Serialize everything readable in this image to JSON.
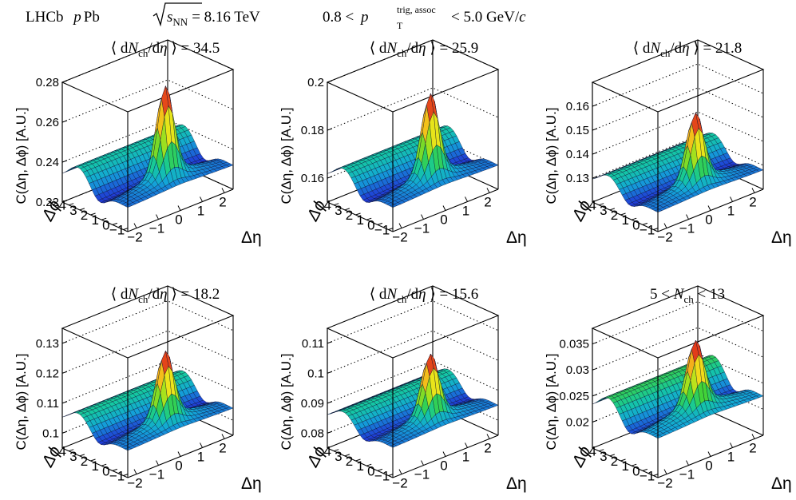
{
  "figure": {
    "experiment": "LHCb",
    "system_p": "p",
    "system_pb": "Pb",
    "energy_symbol": "s",
    "energy_sub": "NN",
    "energy_value": "= 8.16 TeV",
    "pt_low": "0.8 <",
    "pt_symbol": "p",
    "pt_sup": "trig, assoc",
    "pt_sub": "T",
    "pt_high": "< 5.0 GeV/",
    "pt_unit_c": "c"
  },
  "colors": {
    "palette": [
      "#2a0a8c",
      "#1f3fd6",
      "#13a6d8",
      "#14c9a0",
      "#3cd23a",
      "#a8e21c",
      "#f2e41a",
      "#f59a1a",
      "#e23a1a",
      "#c8102e"
    ],
    "mesh": "#0d1030",
    "axis": "#000000"
  },
  "chart_data": [
    {
      "type": "surface3d",
      "title_prefix": "⟨ d",
      "title_N": "N",
      "title_sub": "ch",
      "title_mid": "/d",
      "title_eta": "η",
      "title_suffix": " ⟩ = 34.5",
      "zlabel": "C(Δη, Δϕ) [A.U.]",
      "xlabel": "Δη",
      "ylabel": "Δϕ",
      "zlim": [
        0.22,
        0.28
      ],
      "zticks": [
        "0.22",
        "0.24",
        "0.26",
        "0.28"
      ],
      "xticks": [
        "−2",
        "−1",
        "0",
        "1",
        "2"
      ],
      "yticks": [
        "−1",
        "0",
        "1",
        "2",
        "3",
        "4"
      ],
      "baseline": 0.232,
      "ridge_amp": 0.009,
      "peak": 0.279
    },
    {
      "type": "surface3d",
      "title_prefix": "⟨ d",
      "title_N": "N",
      "title_sub": "ch",
      "title_mid": "/d",
      "title_eta": "η",
      "title_suffix": " ⟩ = 25.9",
      "zlabel": "C(Δη, Δϕ) [A.U.]",
      "xlabel": "Δη",
      "ylabel": "Δϕ",
      "zlim": [
        0.15,
        0.2
      ],
      "zticks": [
        "0.16",
        "0.18",
        "0.2"
      ],
      "xticks": [
        "−2",
        "−1",
        "0",
        "1",
        "2"
      ],
      "yticks": [
        "−1",
        "0",
        "1",
        "2",
        "3",
        "4"
      ],
      "baseline": 0.16,
      "ridge_amp": 0.007,
      "peak": 0.196
    },
    {
      "type": "surface3d",
      "title_prefix": "⟨ d",
      "title_N": "N",
      "title_sub": "ch",
      "title_mid": "/d",
      "title_eta": "η",
      "title_suffix": " ⟩ = 21.8",
      "zlabel": "C(Δη, Δϕ) [A.U.]",
      "xlabel": "Δη",
      "ylabel": "Δϕ",
      "zlim": [
        0.12,
        0.17
      ],
      "zticks": [
        "0.13",
        "0.14",
        "0.15",
        "0.16"
      ],
      "xticks": [
        "−2",
        "−1",
        "0",
        "1",
        "2"
      ],
      "yticks": [
        "−1",
        "0",
        "1",
        "2",
        "3",
        "4"
      ],
      "baseline": 0.128,
      "ridge_amp": 0.006,
      "peak": 0.158
    },
    {
      "type": "surface3d",
      "title_prefix": "⟨ d",
      "title_N": "N",
      "title_sub": "ch",
      "title_mid": "/d",
      "title_eta": "η",
      "title_suffix": " ⟩ = 18.2",
      "zlabel": "C(Δη, Δϕ) [A.U.]",
      "xlabel": "Δη",
      "ylabel": "Δϕ",
      "zlim": [
        0.095,
        0.135
      ],
      "zticks": [
        "0.1",
        "0.11",
        "0.12",
        "0.13"
      ],
      "xticks": [
        "−2",
        "−1",
        "0",
        "1",
        "2"
      ],
      "yticks": [
        "−1",
        "0",
        "1",
        "2",
        "3",
        "4"
      ],
      "baseline": 0.104,
      "ridge_amp": 0.005,
      "peak": 0.128
    },
    {
      "type": "surface3d",
      "title_prefix": "⟨ d",
      "title_N": "N",
      "title_sub": "ch",
      "title_mid": "/d",
      "title_eta": "η",
      "title_suffix": " ⟩ = 15.6",
      "zlabel": "C(Δη, Δϕ) [A.U.]",
      "xlabel": "Δη",
      "ylabel": "Δϕ",
      "zlim": [
        0.075,
        0.115
      ],
      "zticks": [
        "0.08",
        "0.09",
        "0.1",
        "0.11"
      ],
      "xticks": [
        "−2",
        "−1",
        "0",
        "1",
        "2"
      ],
      "yticks": [
        "−1",
        "0",
        "1",
        "2",
        "3",
        "4"
      ],
      "baseline": 0.085,
      "ridge_amp": 0.0045,
      "peak": 0.107
    },
    {
      "type": "surface3d",
      "title_prefix": "5 < ",
      "title_N": "N",
      "title_sub": "ch",
      "title_mid": "",
      "title_eta": "",
      "title_suffix": " < 13",
      "zlabel": "C(Δη, Δϕ) [A.U.]",
      "xlabel": "Δη",
      "ylabel": "Δϕ",
      "zlim": [
        0.015,
        0.038
      ],
      "zticks": [
        "0.02",
        "0.025",
        "0.03",
        "0.035"
      ],
      "xticks": [
        "−2",
        "−1",
        "0",
        "1",
        "2"
      ],
      "yticks": [
        "−1",
        "0",
        "1",
        "2",
        "3",
        "4"
      ],
      "baseline": 0.0225,
      "ridge_amp": 0.0035,
      "peak": 0.036
    }
  ]
}
